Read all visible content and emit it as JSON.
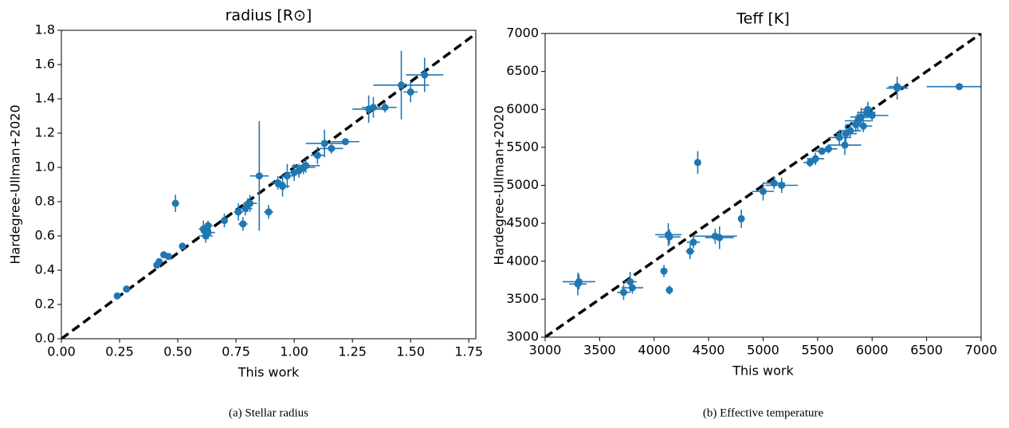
{
  "chart_data": [
    {
      "type": "scatter",
      "title": "radius [R⊙]",
      "xlabel": "This work",
      "ylabel": "Hardegree-Ullman+2020",
      "caption": "(a) Stellar radius",
      "color": "#1f77b4",
      "identity_line": true,
      "xlim": [
        0,
        1.78
      ],
      "ylim": [
        0,
        1.8
      ],
      "xticks": [
        {
          "value": 0,
          "label": "0.00"
        },
        0.25,
        {
          "value": 0.5,
          "label": "0.50"
        },
        0.75,
        {
          "value": 1,
          "label": "1.00"
        },
        1.25,
        {
          "value": 1.5,
          "label": "1.50"
        },
        1.75
      ],
      "yticks": [
        {
          "value": 0,
          "label": "0.0"
        },
        0.2,
        0.4,
        0.6,
        0.8,
        {
          "value": 1,
          "label": "1.0"
        },
        1.2,
        1.4,
        1.6,
        1.8
      ],
      "x": [
        0.24,
        0.28,
        0.41,
        0.42,
        0.44,
        0.46,
        0.49,
        0.52,
        0.61,
        0.62,
        0.63,
        0.63,
        0.7,
        0.76,
        0.78,
        0.79,
        0.8,
        0.81,
        0.85,
        0.89,
        0.93,
        0.95,
        0.97,
        1.0,
        1.02,
        1.04,
        1.05,
        1.1,
        1.13,
        1.16,
        1.22,
        1.32,
        1.34,
        1.39,
        1.46,
        1.5,
        1.56
      ],
      "values": [
        0.25,
        0.29,
        0.43,
        0.45,
        0.49,
        0.48,
        0.79,
        0.54,
        0.64,
        0.6,
        0.62,
        0.66,
        0.69,
        0.74,
        0.67,
        0.76,
        0.78,
        0.79,
        0.95,
        0.74,
        0.91,
        0.89,
        0.95,
        0.97,
        0.98,
        1.0,
        1.01,
        1.07,
        1.14,
        1.11,
        1.15,
        1.34,
        1.35,
        1.35,
        1.48,
        1.44,
        1.54
      ],
      "xerr": [
        0.01,
        0.01,
        0.01,
        0.01,
        0.01,
        0.01,
        0.01,
        0.01,
        0.02,
        0.03,
        0.03,
        0.02,
        0.01,
        0.02,
        0.02,
        0.03,
        0.02,
        0.03,
        0.04,
        0.02,
        0.03,
        0.03,
        0.03,
        0.03,
        0.03,
        0.05,
        0.06,
        0.03,
        0.08,
        0.05,
        0.06,
        0.07,
        0.05,
        0.05,
        0.12,
        0.03,
        0.08
      ],
      "yerr": [
        0.01,
        0.01,
        0.01,
        0.01,
        0.01,
        0.01,
        0.05,
        0.01,
        0.05,
        0.04,
        0.04,
        0.03,
        0.04,
        0.05,
        0.04,
        0.04,
        0.04,
        0.05,
        0.32,
        0.04,
        0.04,
        0.06,
        0.07,
        0.05,
        0.04,
        0.04,
        0.04,
        0.05,
        0.08,
        0.03,
        0.02,
        0.08,
        0.06,
        0.03,
        0.2,
        0.06,
        0.1
      ]
    },
    {
      "type": "scatter",
      "title": "Teff [K]",
      "xlabel": "This work",
      "ylabel": "Hardegree-Ullman+2020",
      "caption": "(b) Effective temperature",
      "color": "#1f77b4",
      "identity_line": true,
      "xlim": [
        3000,
        7000
      ],
      "ylim": [
        3000,
        7000
      ],
      "xticks": [
        3000,
        3500,
        4000,
        4500,
        5000,
        5500,
        6000,
        6500,
        7000
      ],
      "yticks": [
        3000,
        3500,
        4000,
        4500,
        5000,
        5500,
        6000,
        6500,
        7000
      ],
      "x": [
        3300,
        3310,
        3720,
        3780,
        3800,
        4090,
        4130,
        4140,
        4140,
        4330,
        4360,
        4400,
        4560,
        4600,
        4800,
        5000,
        5100,
        5170,
        5430,
        5480,
        5540,
        5600,
        5700,
        5750,
        5760,
        5800,
        5850,
        5870,
        5900,
        5920,
        5950,
        5960,
        6000,
        6230,
        6230,
        6800
      ],
      "values": [
        3700,
        3730,
        3590,
        3730,
        3650,
        3870,
        4350,
        4320,
        3620,
        4130,
        4250,
        5300,
        4330,
        4310,
        4560,
        4920,
        5030,
        5000,
        5300,
        5350,
        5450,
        5480,
        5630,
        5530,
        5680,
        5720,
        5800,
        5850,
        5900,
        5780,
        5960,
        6000,
        5920,
        6280,
        6300,
        6300
      ],
      "xerr": [
        80,
        150,
        60,
        60,
        100,
        30,
        120,
        100,
        30,
        40,
        60,
        30,
        200,
        130,
        30,
        100,
        100,
        150,
        60,
        80,
        60,
        80,
        100,
        150,
        100,
        100,
        80,
        120,
        100,
        80,
        80,
        60,
        150,
        100,
        80,
        300
      ],
      "yerr": [
        150,
        100,
        100,
        130,
        80,
        80,
        150,
        100,
        60,
        100,
        80,
        150,
        100,
        150,
        120,
        120,
        80,
        100,
        60,
        80,
        50,
        60,
        100,
        130,
        130,
        100,
        100,
        120,
        120,
        80,
        80,
        100,
        80,
        150,
        80,
        30
      ]
    }
  ]
}
